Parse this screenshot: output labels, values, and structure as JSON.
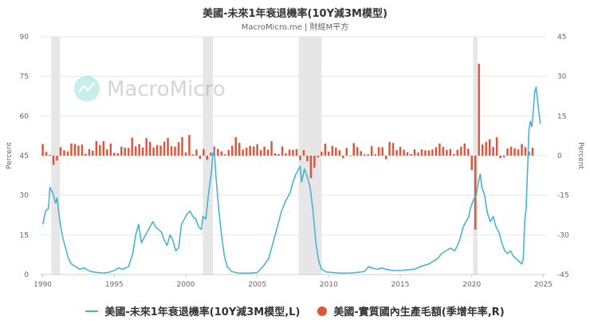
{
  "title": "美國-未來1年衰退機率(10Y減3M模型)",
  "subtitle": "MacroMicro.me | 財經M平方",
  "watermark": "MacroMicro",
  "colors": {
    "line": "#4ab3d3",
    "bar": "#e0553a",
    "recession": "#dcdcdc",
    "grid": "#e6e6e6"
  },
  "chart_data": {
    "type": "line+bar",
    "x_range": [
      1989.8,
      2025.2
    ],
    "x_ticks": [
      1990,
      1995,
      2000,
      2005,
      2010,
      2015,
      2020,
      2025
    ],
    "y_left": {
      "label": "Percent",
      "range": [
        0,
        90
      ],
      "ticks": [
        0,
        15,
        30,
        45,
        60,
        75,
        90
      ]
    },
    "y_right": {
      "label": "Percent",
      "range": [
        -45,
        45
      ],
      "ticks": [
        -45,
        -30,
        -15,
        0,
        15,
        30,
        45
      ]
    },
    "recessions": [
      [
        1990.6,
        1991.2
      ],
      [
        2001.2,
        2001.9
      ],
      [
        2007.9,
        2009.5
      ],
      [
        2020.1,
        2020.4
      ]
    ],
    "series": [
      {
        "name": "美國-未來1年衰退機率(10Y減3M模型,L)",
        "axis": "left",
        "type": "line",
        "points": [
          [
            1990.0,
            19
          ],
          [
            1990.2,
            24
          ],
          [
            1990.4,
            25
          ],
          [
            1990.5,
            33
          ],
          [
            1990.7,
            31
          ],
          [
            1990.9,
            27
          ],
          [
            1991.0,
            29
          ],
          [
            1991.2,
            20
          ],
          [
            1991.4,
            14
          ],
          [
            1991.6,
            10
          ],
          [
            1991.8,
            6
          ],
          [
            1992.0,
            4
          ],
          [
            1992.3,
            3
          ],
          [
            1992.6,
            2
          ],
          [
            1992.9,
            2.5
          ],
          [
            1993.2,
            1.5
          ],
          [
            1993.5,
            1
          ],
          [
            1993.8,
            0.8
          ],
          [
            1994.2,
            0.6
          ],
          [
            1994.6,
            0.8
          ],
          [
            1995.0,
            1.5
          ],
          [
            1995.3,
            2.5
          ],
          [
            1995.6,
            2
          ],
          [
            1996.0,
            3
          ],
          [
            1996.3,
            8
          ],
          [
            1996.5,
            15
          ],
          [
            1996.7,
            19
          ],
          [
            1996.9,
            12
          ],
          [
            1997.1,
            14
          ],
          [
            1997.3,
            16
          ],
          [
            1997.5,
            18
          ],
          [
            1997.7,
            20
          ],
          [
            1997.9,
            18
          ],
          [
            1998.1,
            17
          ],
          [
            1998.3,
            16
          ],
          [
            1998.5,
            13
          ],
          [
            1998.7,
            11
          ],
          [
            1998.9,
            15
          ],
          [
            1999.1,
            13
          ],
          [
            1999.3,
            9
          ],
          [
            1999.5,
            10
          ],
          [
            1999.7,
            19
          ],
          [
            1999.9,
            21
          ],
          [
            2000.1,
            23
          ],
          [
            2000.3,
            24
          ],
          [
            2000.5,
            22
          ],
          [
            2000.7,
            21
          ],
          [
            2000.9,
            18
          ],
          [
            2001.1,
            17
          ],
          [
            2001.2,
            22
          ],
          [
            2001.4,
            21
          ],
          [
            2001.6,
            31
          ],
          [
            2001.8,
            39
          ],
          [
            2001.9,
            46
          ],
          [
            2002.0,
            47
          ],
          [
            2002.1,
            38
          ],
          [
            2002.3,
            25
          ],
          [
            2002.5,
            15
          ],
          [
            2002.7,
            7
          ],
          [
            2002.9,
            3
          ],
          [
            2003.2,
            1.2
          ],
          [
            2003.6,
            0.6
          ],
          [
            2004.0,
            0.5
          ],
          [
            2004.5,
            0.5
          ],
          [
            2005.0,
            0.8
          ],
          [
            2005.4,
            3
          ],
          [
            2005.8,
            6
          ],
          [
            2006.1,
            12
          ],
          [
            2006.4,
            18
          ],
          [
            2006.7,
            24
          ],
          [
            2007.0,
            28
          ],
          [
            2007.3,
            31
          ],
          [
            2007.5,
            35
          ],
          [
            2007.7,
            38
          ],
          [
            2007.9,
            40
          ],
          [
            2008.0,
            41
          ],
          [
            2008.1,
            35
          ],
          [
            2008.3,
            40
          ],
          [
            2008.5,
            37
          ],
          [
            2008.7,
            33
          ],
          [
            2008.9,
            24
          ],
          [
            2009.1,
            12
          ],
          [
            2009.3,
            5
          ],
          [
            2009.5,
            2
          ],
          [
            2009.8,
            1
          ],
          [
            2010.2,
            0.8
          ],
          [
            2010.6,
            0.6
          ],
          [
            2011.0,
            0.5
          ],
          [
            2011.5,
            0.6
          ],
          [
            2012.0,
            0.8
          ],
          [
            2012.5,
            1.2
          ],
          [
            2012.8,
            3
          ],
          [
            2013.0,
            2.5
          ],
          [
            2013.4,
            2
          ],
          [
            2013.7,
            2.5
          ],
          [
            2014.0,
            2
          ],
          [
            2014.5,
            1.5
          ],
          [
            2015.0,
            1.5
          ],
          [
            2015.5,
            1.8
          ],
          [
            2016.0,
            2
          ],
          [
            2016.4,
            3
          ],
          [
            2016.7,
            3.5
          ],
          [
            2017.0,
            4
          ],
          [
            2017.3,
            5
          ],
          [
            2017.6,
            6
          ],
          [
            2017.9,
            8
          ],
          [
            2018.2,
            9
          ],
          [
            2018.5,
            10
          ],
          [
            2018.8,
            9
          ],
          [
            2019.0,
            11
          ],
          [
            2019.2,
            14
          ],
          [
            2019.4,
            18
          ],
          [
            2019.6,
            20
          ],
          [
            2019.8,
            22
          ],
          [
            2019.9,
            25
          ],
          [
            2020.1,
            28
          ],
          [
            2020.3,
            30
          ],
          [
            2020.4,
            33
          ],
          [
            2020.5,
            36
          ],
          [
            2020.6,
            38
          ],
          [
            2020.7,
            33
          ],
          [
            2020.9,
            30
          ],
          [
            2021.0,
            26
          ],
          [
            2021.1,
            23
          ],
          [
            2021.3,
            20
          ],
          [
            2021.5,
            22
          ],
          [
            2021.7,
            18
          ],
          [
            2021.9,
            16
          ],
          [
            2022.1,
            12
          ],
          [
            2022.3,
            9
          ],
          [
            2022.5,
            8
          ],
          [
            2022.7,
            9
          ],
          [
            2022.9,
            7
          ],
          [
            2023.1,
            6
          ],
          [
            2023.3,
            5
          ],
          [
            2023.5,
            4
          ],
          [
            2023.6,
            6
          ],
          [
            2023.7,
            20
          ],
          [
            2023.8,
            25
          ],
          [
            2023.9,
            40
          ],
          [
            2024.0,
            55
          ],
          [
            2024.1,
            58
          ],
          [
            2024.2,
            56
          ],
          [
            2024.3,
            62
          ],
          [
            2024.4,
            69
          ],
          [
            2024.5,
            71
          ],
          [
            2024.6,
            66
          ],
          [
            2024.7,
            61
          ],
          [
            2024.8,
            57
          ]
        ]
      },
      {
        "name": "美國-實質國內生產毛額(季增年率,R)",
        "axis": "right",
        "type": "bar",
        "points": [
          [
            1990.0,
            4.4
          ],
          [
            1990.25,
            1.4
          ],
          [
            1990.5,
            0.3
          ],
          [
            1990.75,
            -3.5
          ],
          [
            1991.0,
            -1.9
          ],
          [
            1991.25,
            3.2
          ],
          [
            1991.5,
            2.0
          ],
          [
            1991.75,
            1.6
          ],
          [
            1992.0,
            4.6
          ],
          [
            1992.25,
            4.4
          ],
          [
            1992.5,
            3.8
          ],
          [
            1992.75,
            4.2
          ],
          [
            1993.0,
            0.7
          ],
          [
            1993.25,
            2.5
          ],
          [
            1993.5,
            1.9
          ],
          [
            1993.75,
            5.5
          ],
          [
            1994.0,
            4.0
          ],
          [
            1994.25,
            5.5
          ],
          [
            1994.5,
            2.4
          ],
          [
            1994.75,
            4.6
          ],
          [
            1995.0,
            1.1
          ],
          [
            1995.25,
            0.9
          ],
          [
            1995.5,
            3.4
          ],
          [
            1995.75,
            3.0
          ],
          [
            1996.0,
            2.9
          ],
          [
            1996.25,
            6.8
          ],
          [
            1996.5,
            3.5
          ],
          [
            1996.75,
            4.4
          ],
          [
            1997.0,
            3.1
          ],
          [
            1997.25,
            6.6
          ],
          [
            1997.5,
            5.2
          ],
          [
            1997.75,
            3.1
          ],
          [
            1998.0,
            4.0
          ],
          [
            1998.25,
            3.8
          ],
          [
            1998.5,
            5.3
          ],
          [
            1998.75,
            6.7
          ],
          [
            1999.0,
            3.6
          ],
          [
            1999.25,
            3.4
          ],
          [
            1999.5,
            5.1
          ],
          [
            1999.75,
            7.0
          ],
          [
            2000.0,
            1.2
          ],
          [
            2000.25,
            7.8
          ],
          [
            2000.5,
            0.5
          ],
          [
            2000.75,
            2.3
          ],
          [
            2001.0,
            -1.3
          ],
          [
            2001.25,
            2.5
          ],
          [
            2001.5,
            -1.6
          ],
          [
            2001.75,
            1.1
          ],
          [
            2002.0,
            3.4
          ],
          [
            2002.25,
            2.5
          ],
          [
            2002.5,
            1.6
          ],
          [
            2002.75,
            0.5
          ],
          [
            2003.0,
            2.1
          ],
          [
            2003.25,
            3.8
          ],
          [
            2003.5,
            6.9
          ],
          [
            2003.75,
            4.8
          ],
          [
            2004.0,
            2.3
          ],
          [
            2004.25,
            3.0
          ],
          [
            2004.5,
            3.7
          ],
          [
            2004.75,
            3.5
          ],
          [
            2005.0,
            4.3
          ],
          [
            2005.25,
            2.1
          ],
          [
            2005.5,
            3.4
          ],
          [
            2005.75,
            2.3
          ],
          [
            2006.0,
            5.5
          ],
          [
            2006.25,
            0.9
          ],
          [
            2006.5,
            0.6
          ],
          [
            2006.75,
            3.5
          ],
          [
            2007.0,
            0.9
          ],
          [
            2007.25,
            2.3
          ],
          [
            2007.5,
            2.2
          ],
          [
            2007.75,
            2.5
          ],
          [
            2008.0,
            -1.7
          ],
          [
            2008.25,
            2.1
          ],
          [
            2008.5,
            -2.1
          ],
          [
            2008.75,
            -8.5
          ],
          [
            2009.0,
            -4.6
          ],
          [
            2009.25,
            -0.7
          ],
          [
            2009.5,
            1.5
          ],
          [
            2009.75,
            4.5
          ],
          [
            2010.0,
            1.5
          ],
          [
            2010.25,
            3.7
          ],
          [
            2010.5,
            3.0
          ],
          [
            2010.75,
            2.0
          ],
          [
            2011.0,
            -1.0
          ],
          [
            2011.25,
            2.9
          ],
          [
            2011.5,
            -0.1
          ],
          [
            2011.75,
            4.7
          ],
          [
            2012.0,
            3.2
          ],
          [
            2012.25,
            1.7
          ],
          [
            2012.5,
            0.5
          ],
          [
            2012.75,
            0.5
          ],
          [
            2013.0,
            3.6
          ],
          [
            2013.25,
            0.5
          ],
          [
            2013.5,
            3.2
          ],
          [
            2013.75,
            3.2
          ],
          [
            2014.0,
            -1.4
          ],
          [
            2014.25,
            5.2
          ],
          [
            2014.5,
            4.8
          ],
          [
            2014.75,
            2.1
          ],
          [
            2015.0,
            3.3
          ],
          [
            2015.25,
            2.3
          ],
          [
            2015.5,
            1.3
          ],
          [
            2015.75,
            0.6
          ],
          [
            2016.0,
            2.4
          ],
          [
            2016.25,
            1.2
          ],
          [
            2016.5,
            2.4
          ],
          [
            2016.75,
            2.0
          ],
          [
            2017.0,
            2.0
          ],
          [
            2017.25,
            2.3
          ],
          [
            2017.5,
            3.2
          ],
          [
            2017.75,
            4.6
          ],
          [
            2018.0,
            3.3
          ],
          [
            2018.25,
            2.1
          ],
          [
            2018.5,
            2.5
          ],
          [
            2018.75,
            0.6
          ],
          [
            2019.0,
            2.2
          ],
          [
            2019.25,
            3.4
          ],
          [
            2019.5,
            4.6
          ],
          [
            2019.75,
            2.6
          ],
          [
            2020.0,
            -5.5
          ],
          [
            2020.25,
            -28.0
          ],
          [
            2020.5,
            34.8
          ],
          [
            2020.75,
            4.2
          ],
          [
            2021.0,
            5.2
          ],
          [
            2021.25,
            6.2
          ],
          [
            2021.5,
            3.3
          ],
          [
            2021.75,
            7.0
          ],
          [
            2022.0,
            -1.0
          ],
          [
            2022.25,
            -0.6
          ],
          [
            2022.5,
            2.7
          ],
          [
            2022.75,
            3.4
          ],
          [
            2023.0,
            2.8
          ],
          [
            2023.25,
            2.4
          ],
          [
            2023.5,
            4.4
          ],
          [
            2023.75,
            3.2
          ],
          [
            2024.0,
            1.6
          ],
          [
            2024.25,
            3.0
          ]
        ]
      }
    ]
  }
}
